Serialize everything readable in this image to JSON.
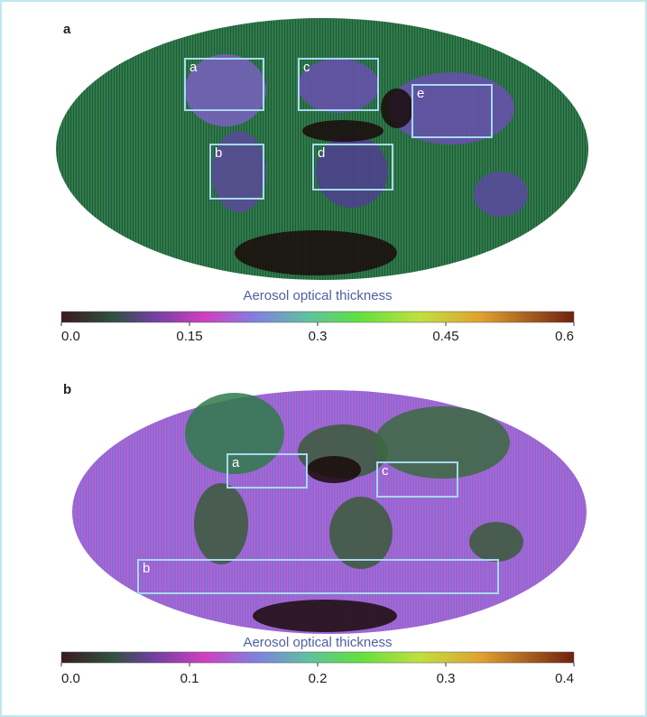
{
  "panels": [
    {
      "label": "a",
      "regions": [
        {
          "label": "a"
        },
        {
          "label": "c"
        },
        {
          "label": "e"
        },
        {
          "label": "b"
        },
        {
          "label": "d"
        }
      ],
      "colorbar": {
        "title": "Aerosol optical thickness",
        "range": [
          0,
          0.6
        ],
        "ticks": [
          {
            "value": 0,
            "label": "0.0"
          },
          0.15,
          0.3,
          0.45,
          0.6
        ]
      }
    },
    {
      "label": "b",
      "regions": [
        {
          "label": "a"
        },
        {
          "label": "c"
        },
        {
          "label": "b"
        }
      ],
      "colorbar": {
        "title": "Aerosol optical thickness",
        "range": [
          0,
          0.4
        ],
        "ticks": [
          {
            "value": 0,
            "label": "0.0"
          },
          0.1,
          0.2,
          0.3,
          0.4
        ]
      }
    }
  ]
}
